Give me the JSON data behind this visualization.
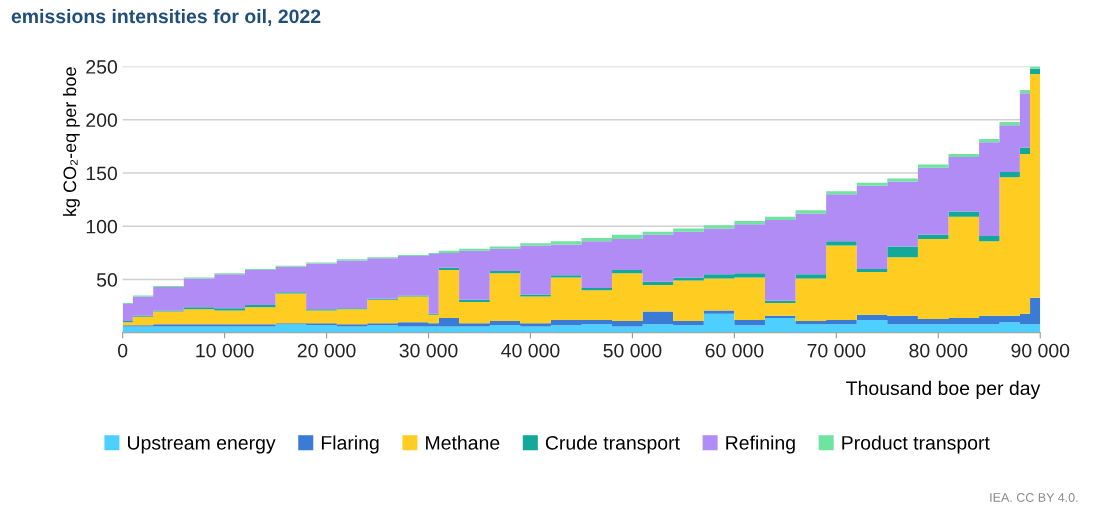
{
  "chart_data": {
    "type": "area",
    "stacked": true,
    "title": "emissions intensities for oil, 2022",
    "xlabel": "Thousand boe per day",
    "ylabel": "kg CO₂-eq per boe",
    "x": [
      0,
      1000,
      3000,
      6000,
      9000,
      12000,
      15000,
      18000,
      21000,
      24000,
      27000,
      30000,
      31000,
      33000,
      36000,
      39000,
      42000,
      45000,
      48000,
      51000,
      54000,
      57000,
      60000,
      63000,
      66000,
      69000,
      72000,
      75000,
      78000,
      81000,
      84000,
      86000,
      88000,
      89000,
      90000
    ],
    "series": [
      {
        "name": "Upstream energy",
        "color": "#4dcfff",
        "values": [
          6,
          6,
          6,
          6,
          6,
          6,
          8,
          7,
          6,
          7,
          6,
          6,
          6,
          6,
          7,
          6,
          7,
          8,
          6,
          8,
          7,
          18,
          7,
          14,
          8,
          8,
          12,
          8,
          8,
          8,
          8,
          10,
          8,
          8,
          8
        ]
      },
      {
        "name": "Flaring",
        "color": "#3a7bd5",
        "values": [
          1,
          1,
          2,
          2,
          2,
          2,
          1,
          2,
          2,
          2,
          4,
          3,
          8,
          3,
          4,
          3,
          5,
          4,
          5,
          12,
          4,
          3,
          5,
          2,
          3,
          4,
          5,
          8,
          5,
          6,
          8,
          6,
          10,
          25,
          25
        ]
      },
      {
        "name": "Methane",
        "color": "#ffcc22",
        "values": [
          3,
          8,
          12,
          14,
          13,
          16,
          28,
          12,
          14,
          22,
          24,
          8,
          45,
          20,
          45,
          25,
          40,
          28,
          45,
          25,
          38,
          30,
          40,
          12,
          40,
          70,
          40,
          55,
          75,
          95,
          70,
          130,
          150,
          210,
          210
        ]
      },
      {
        "name": "Crude transport",
        "color": "#12a89a",
        "values": [
          1,
          1,
          1,
          2,
          2,
          2,
          1,
          1,
          1,
          1,
          1,
          1,
          2,
          2,
          2,
          2,
          2,
          2,
          3,
          3,
          3,
          4,
          4,
          2,
          4,
          4,
          3,
          10,
          4,
          5,
          5,
          5,
          6,
          5,
          5
        ]
      },
      {
        "name": "Refining",
        "color": "#b18cf5",
        "values": [
          16,
          18,
          22,
          27,
          32,
          33,
          24,
          43,
          45,
          38,
          37,
          56,
          14,
          46,
          21,
          46,
          29,
          44,
          29,
          44,
          43,
          43,
          46,
          76,
          57,
          44,
          78,
          61,
          63,
          51,
          88,
          44,
          51,
          0,
          0
        ]
      },
      {
        "name": "Product transport",
        "color": "#6fe3a0",
        "values": [
          1,
          1,
          1,
          1,
          1,
          1,
          1,
          1,
          1,
          1,
          1,
          1,
          2,
          2,
          2,
          2,
          3,
          3,
          4,
          3,
          3,
          3,
          3,
          3,
          3,
          3,
          3,
          3,
          3,
          3,
          3,
          3,
          3,
          2,
          2
        ]
      }
    ],
    "xlim": [
      0,
      90000
    ],
    "xticks": [
      0,
      {
        "value": 10000,
        "label": "10 000"
      },
      {
        "value": 20000,
        "label": "20 000"
      },
      {
        "value": 30000,
        "label": "30 000"
      },
      {
        "value": 40000,
        "label": "40 000"
      },
      {
        "value": 50000,
        "label": "50 000"
      },
      {
        "value": 60000,
        "label": "60 000"
      },
      {
        "value": 70000,
        "label": "70 000"
      },
      {
        "value": 80000,
        "label": "80 000"
      },
      {
        "value": 90000,
        "label": "90 000"
      }
    ],
    "ylim": [
      0,
      250
    ],
    "yticks": [
      50,
      100,
      150,
      200,
      250
    ],
    "grid": "y",
    "legend": "bottom",
    "annotations": [
      "IEA. CC BY 4.0."
    ]
  }
}
